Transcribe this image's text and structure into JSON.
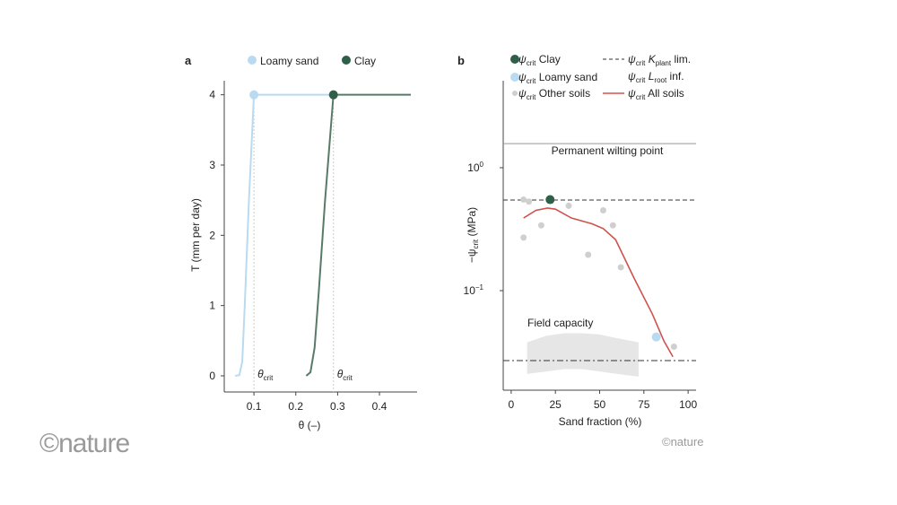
{
  "chart_data": [
    {
      "type": "line",
      "panel_label": "a",
      "xlabel": "θ (–)",
      "ylabel": "T (mm per day)",
      "xlim": [
        0.029,
        0.49
      ],
      "ylim": [
        -0.23,
        4.2
      ],
      "xticks": [
        "0.1",
        "0.2",
        "0.3",
        "0.4"
      ],
      "xtick_values": [
        0.1,
        0.2,
        0.3,
        0.4
      ],
      "yticks": [
        "0",
        "1",
        "2",
        "3",
        "4"
      ],
      "ytick_values": [
        0,
        1,
        2,
        3,
        4
      ],
      "grid": false,
      "legend_position": "top",
      "series": [
        {
          "name": "Loamy sand",
          "color": "#b9daf1",
          "points": [
            [
              0.055,
              0
            ],
            [
              0.065,
              0.01
            ],
            [
              0.072,
              0.2
            ],
            [
              0.078,
              1
            ],
            [
              0.088,
              2.5
            ],
            [
              0.1,
              4
            ],
            [
              0.29,
              4
            ]
          ],
          "critical_point": [
            0.1,
            4
          ],
          "theta_crit": 0.1
        },
        {
          "name": "Clay",
          "color": "#2f5e49",
          "line_color": "#587a69",
          "points": [
            [
              0.225,
              0
            ],
            [
              0.235,
              0.05
            ],
            [
              0.245,
              0.4
            ],
            [
              0.255,
              1.2
            ],
            [
              0.27,
              2.5
            ],
            [
              0.29,
              4
            ],
            [
              0.475,
              4
            ]
          ],
          "critical_point": [
            0.29,
            4
          ],
          "theta_crit": 0.29
        }
      ],
      "annotations": {
        "theta_crit_main": "θ",
        "theta_crit_sub": "crit"
      }
    },
    {
      "type": "scatter",
      "panel_label": "b",
      "xlabel": "Sand fraction (%)",
      "ylabel_main": "−ψ",
      "ylabel_sub": "crit",
      "ylabel_unit": " (MPa)",
      "xlim": [
        -4.5,
        104.5
      ],
      "ylim": [
        0.0155,
        5.1
      ],
      "yscale": "log",
      "xticks": [
        "0",
        "25",
        "50",
        "75",
        "100"
      ],
      "xtick_values": [
        0,
        25,
        50,
        75,
        100
      ],
      "yticks": [
        {
          "base": "10",
          "exp": "0",
          "value": 1
        },
        {
          "base": "10",
          "exp": "−1",
          "value": 0.1
        }
      ],
      "grid": false,
      "legend_position": "top",
      "legend": [
        {
          "main": "ψ",
          "sub": "crit",
          "text": " Clay",
          "marker": "dot-large",
          "color": "#2f5e49"
        },
        {
          "main": "ψ",
          "sub": "crit",
          "text": " Loamy sand",
          "marker": "dot-large",
          "color": "#b9daf1"
        },
        {
          "main": "ψ",
          "sub": "crit",
          "text": " Other soils",
          "marker": "dot-small",
          "color": "#cfcfcf"
        },
        {
          "main": "ψ",
          "sub": "crit",
          "k": " K",
          "ksub": "plant",
          "text": " lim.",
          "marker": "dash",
          "color": "#333333"
        },
        {
          "main": "ψ",
          "sub": "crit",
          "k": " L",
          "ksub": "root",
          "text": " inf.",
          "marker": "dashdot",
          "color": "#333333"
        },
        {
          "main": "ψ",
          "sub": "crit",
          "text": " All soils",
          "marker": "line",
          "color": "#d0524d"
        }
      ],
      "clay_point": {
        "x": 22,
        "y": 0.55,
        "color": "#2f5e49"
      },
      "loamy_sand_point": {
        "x": 82,
        "y": 0.042,
        "color": "#b9daf1"
      },
      "other_soils": {
        "color": "#cfcfcf",
        "points": [
          [
            7,
            0.55
          ],
          [
            10,
            0.53
          ],
          [
            7,
            0.27
          ],
          [
            17,
            0.34
          ],
          [
            32.5,
            0.49
          ],
          [
            43.5,
            0.196
          ],
          [
            52,
            0.45
          ],
          [
            57.5,
            0.34
          ],
          [
            62,
            0.155
          ],
          [
            92,
            0.035
          ]
        ]
      },
      "all_soils_curve": {
        "color": "#d0524d",
        "points": [
          [
            7,
            0.39
          ],
          [
            14,
            0.45
          ],
          [
            20.5,
            0.47
          ],
          [
            25,
            0.46
          ],
          [
            34,
            0.39
          ],
          [
            45.7,
            0.35
          ],
          [
            52,
            0.32
          ],
          [
            59,
            0.26
          ],
          [
            69.5,
            0.126
          ],
          [
            79.7,
            0.065
          ],
          [
            86.3,
            0.039
          ],
          [
            91.4,
            0.029
          ]
        ]
      },
      "kplant_limit": 0.546,
      "lroot_inf": 0.027,
      "permanent_wilting_point": {
        "value": 1.57,
        "label": "Permanent wilting point"
      },
      "field_capacity": {
        "label": "Field capacity",
        "color": "#e6e6e6",
        "upper": [
          [
            9,
            0.038
          ],
          [
            20,
            0.043
          ],
          [
            30,
            0.045
          ],
          [
            40,
            0.045
          ],
          [
            50,
            0.044
          ],
          [
            60,
            0.041
          ],
          [
            72,
            0.038
          ]
        ],
        "lower": [
          [
            9,
            0.021
          ],
          [
            20,
            0.022
          ],
          [
            30,
            0.023
          ],
          [
            40,
            0.023
          ],
          [
            50,
            0.022
          ],
          [
            60,
            0.021
          ],
          [
            72,
            0.02
          ]
        ]
      }
    }
  ],
  "watermarks": {
    "large": "©nature",
    "small": "©nature"
  }
}
